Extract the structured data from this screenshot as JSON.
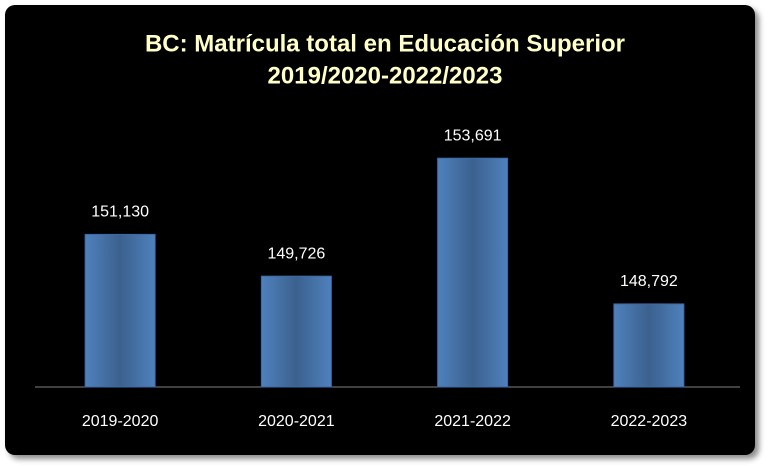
{
  "chart_data": {
    "type": "bar",
    "title": [
      "BC: Matrícula total en Educación Superior",
      "2019/2020-2022/2023"
    ],
    "categories": [
      "2019-2020",
      "2020-2021",
      "2021-2022",
      "2022-2023"
    ],
    "values": [
      151130,
      149726,
      153691,
      148792
    ],
    "value_labels": [
      "151,130",
      "149,726",
      "153,691",
      "148,792"
    ],
    "color": "#4f81bd",
    "ylim": [
      146000,
      154000
    ]
  }
}
